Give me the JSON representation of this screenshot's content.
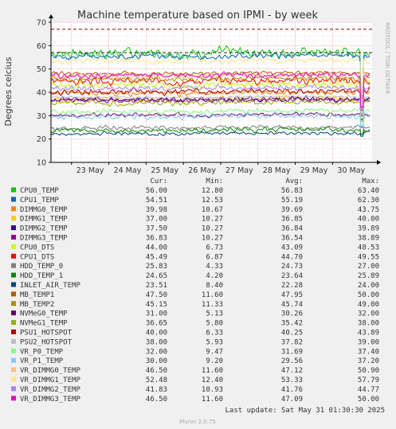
{
  "chart_data": {
    "type": "line",
    "title": "Machine temperature based on IPMI - by week",
    "ylabel": "Degrees celcius",
    "ylim": [
      10,
      70
    ],
    "yticks": [
      10,
      20,
      30,
      40,
      50,
      60,
      70
    ],
    "x_tick_labels": [
      "23 May",
      "24 May",
      "25 May",
      "26 May",
      "27 May",
      "28 May",
      "29 May",
      "30 May"
    ],
    "x_range_days": [
      22.45,
      31.06
    ],
    "x_tick_days": [
      23,
      24,
      25,
      26,
      27,
      28,
      29,
      30
    ],
    "threshold_lines": [
      57,
      67
    ],
    "grid": true,
    "side_label": "RRDTOOL / TOBI OETIKER",
    "columns": [
      "Cur:",
      "Min:",
      "Avg:",
      "Max:"
    ],
    "series": [
      {
        "name": "CPU0_TEMP",
        "color": "#00cc00",
        "cur": "56.00",
        "min": "12.80",
        "avg": "56.83",
        "max": "63.40"
      },
      {
        "name": "CPU1_TEMP",
        "color": "#0066b3",
        "cur": "54.51",
        "min": "12.53",
        "avg": "55.19",
        "max": "62.30"
      },
      {
        "name": "DIMMG0_TEMP",
        "color": "#ff8000",
        "cur": "39.98",
        "min": "10.67",
        "avg": "39.69",
        "max": "43.75"
      },
      {
        "name": "DIMMG1_TEMP",
        "color": "#ffcc00",
        "cur": "37.00",
        "min": "10.27",
        "avg": "36.85",
        "max": "40.00"
      },
      {
        "name": "DIMMG2_TEMP",
        "color": "#330099",
        "cur": "37.50",
        "min": "10.27",
        "avg": "36.84",
        "max": "39.89"
      },
      {
        "name": "DIMMG3_TEMP",
        "color": "#990099",
        "cur": "36.83",
        "min": "10.27",
        "avg": "36.54",
        "max": "38.89"
      },
      {
        "name": "CPU0_DTS",
        "color": "#ccff00",
        "cur": "44.00",
        "min": "6.73",
        "avg": "43.09",
        "max": "48.53"
      },
      {
        "name": "CPU1_DTS",
        "color": "#ff0000",
        "cur": "45.49",
        "min": "6.87",
        "avg": "44.70",
        "max": "49.55"
      },
      {
        "name": "HDD_TEMP_0",
        "color": "#808080",
        "cur": "25.83",
        "min": "4.33",
        "avg": "24.73",
        "max": "27.00"
      },
      {
        "name": "HDD_TEMP_1",
        "color": "#008f00",
        "cur": "24.65",
        "min": "4.20",
        "avg": "23.64",
        "max": "25.89"
      },
      {
        "name": "INLET_AIR_TEMP",
        "color": "#00487d",
        "cur": "23.51",
        "min": "8.40",
        "avg": "22.28",
        "max": "24.00"
      },
      {
        "name": "MB_TEMP1",
        "color": "#b35a00",
        "cur": "47.50",
        "min": "11.60",
        "avg": "47.95",
        "max": "50.00"
      },
      {
        "name": "MB_TEMP2",
        "color": "#b38f00",
        "cur": "45.15",
        "min": "11.33",
        "avg": "45.74",
        "max": "49.00"
      },
      {
        "name": "NVMeG0_TEMP",
        "color": "#6b006b",
        "cur": "31.00",
        "min": "5.13",
        "avg": "30.26",
        "max": "32.00"
      },
      {
        "name": "NVMeG1_TEMP",
        "color": "#8fb300",
        "cur": "36.65",
        "min": "5.80",
        "avg": "35.42",
        "max": "38.00"
      },
      {
        "name": "PSU1_HOTSPOT",
        "color": "#b30000",
        "cur": "40.00",
        "min": "6.33",
        "avg": "40.25",
        "max": "43.89"
      },
      {
        "name": "PSU2_HOTSPOT",
        "color": "#bebebe",
        "cur": "38.00",
        "min": "5.93",
        "avg": "37.82",
        "max": "39.00"
      },
      {
        "name": "VR_P0_TEMP",
        "color": "#80ff80",
        "cur": "32.00",
        "min": "9.47",
        "avg": "31.69",
        "max": "37.40"
      },
      {
        "name": "VR_P1_TEMP",
        "color": "#80c9ff",
        "cur": "30.00",
        "min": "9.20",
        "avg": "29.56",
        "max": "37.20"
      },
      {
        "name": "VR_DIMMG0_TEMP",
        "color": "#ffc080",
        "cur": "46.50",
        "min": "11.60",
        "avg": "47.12",
        "max": "50.90"
      },
      {
        "name": "VR_DIMMG1_TEMP",
        "color": "#ffe680",
        "cur": "52.48",
        "min": "12.40",
        "avg": "53.33",
        "max": "57.79"
      },
      {
        "name": "VR_DIMMG2_TEMP",
        "color": "#aa80ff",
        "cur": "41.83",
        "min": "10.93",
        "avg": "41.76",
        "max": "44.77"
      },
      {
        "name": "VR_DIMMG3_TEMP",
        "color": "#ee00cc",
        "cur": "46.50",
        "min": "11.60",
        "avg": "47.09",
        "max": "50.00"
      }
    ],
    "last_update": "Last update: Sat May 31 01:30:30 2025",
    "footer": "Munin 2.0.75"
  }
}
